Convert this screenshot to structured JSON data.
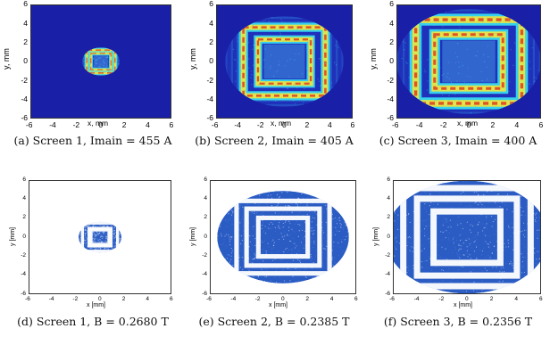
{
  "figure": {
    "panels": [
      {
        "id": "a",
        "caption": "(a) Screen 1, Imain = 455 A",
        "xlabel": "x, mm",
        "ylabel": "y, mm",
        "x_ticks": [
          "-6",
          "-4",
          "-2",
          "0",
          "2",
          "4",
          "6"
        ],
        "y_ticks": [
          "6",
          "4",
          "2",
          "0",
          "-2",
          "-4",
          "-6"
        ],
        "style": "heatmap",
        "background_color": "#1a1fa8",
        "image_extent_mm": 1.6,
        "outer_square_mm": 1.2,
        "inner_square_mm": 0.6
      },
      {
        "id": "b",
        "caption": "(b) Screen 2, Imain = 405 A",
        "xlabel": "x, mm",
        "ylabel": "y, mm",
        "x_ticks": [
          "-6",
          "-4",
          "-2",
          "0",
          "2",
          "4",
          "6"
        ],
        "y_ticks": [
          "6",
          "4",
          "2",
          "0",
          "-2",
          "-4",
          "-6"
        ],
        "style": "heatmap",
        "background_color": "#1a1fa8",
        "image_extent_mm": 5.2,
        "outer_square_mm": 3.6,
        "inner_square_mm": 1.8
      },
      {
        "id": "c",
        "caption": "(c) Screen 3, Imain = 400 A",
        "xlabel": "x, mm",
        "ylabel": "y, mm",
        "x_ticks": [
          "-6",
          "-4",
          "-2",
          "0",
          "2",
          "4",
          "6"
        ],
        "y_ticks": [
          "6",
          "4",
          "2",
          "0",
          "-2",
          "-4",
          "-6"
        ],
        "style": "heatmap",
        "background_color": "#1a1fa8",
        "image_extent_mm": 6,
        "outer_square_mm": 4.4,
        "inner_square_mm": 2.2
      },
      {
        "id": "d",
        "caption": "(d) Screen 1, B = 0.2680 T",
        "xlabel": "x [mm]",
        "ylabel": "y [mm]",
        "x_ticks": [
          "-6",
          "-4",
          "-2",
          "0",
          "2",
          "4",
          "6"
        ],
        "y_ticks": [
          "6",
          "4",
          "2",
          "0",
          "-2",
          "-4",
          "-6"
        ],
        "style": "scatter",
        "background_color": "#ffffff",
        "image_extent_mm": 1.8,
        "outer_square_mm": 1.2,
        "inner_square_mm": 0.6
      },
      {
        "id": "e",
        "caption": "(e) Screen 2, B = 0.2385 T",
        "xlabel": "x [mm]",
        "ylabel": "y [mm]",
        "x_ticks": [
          "-6",
          "-4",
          "-2",
          "0",
          "2",
          "4",
          "6"
        ],
        "y_ticks": [
          "6",
          "4",
          "2",
          "0",
          "-2",
          "-4",
          "-6"
        ],
        "style": "scatter",
        "background_color": "#ffffff",
        "image_extent_mm": 5.4,
        "outer_square_mm": 3.4,
        "inner_square_mm": 1.8
      },
      {
        "id": "f",
        "caption": "(f) Screen 3, B = 0.2356 T",
        "xlabel": "x [mm]",
        "ylabel": "y [mm]",
        "x_ticks": [
          "-6",
          "-4",
          "-2",
          "0",
          "2",
          "4",
          "6"
        ],
        "y_ticks": [
          "6",
          "4",
          "2",
          "0",
          "-2",
          "-4",
          "-6"
        ],
        "style": "scatter",
        "background_color": "#ffffff",
        "image_extent_mm": 6.6,
        "outer_square_mm": 4.6,
        "inner_square_mm": 2.4
      }
    ],
    "colors": {
      "cold": "#1a1fa8",
      "cyan": "#38d9f0",
      "yellow": "#f2e63a",
      "red": "#e03a1e",
      "scatter": "#2a5cc4"
    }
  }
}
